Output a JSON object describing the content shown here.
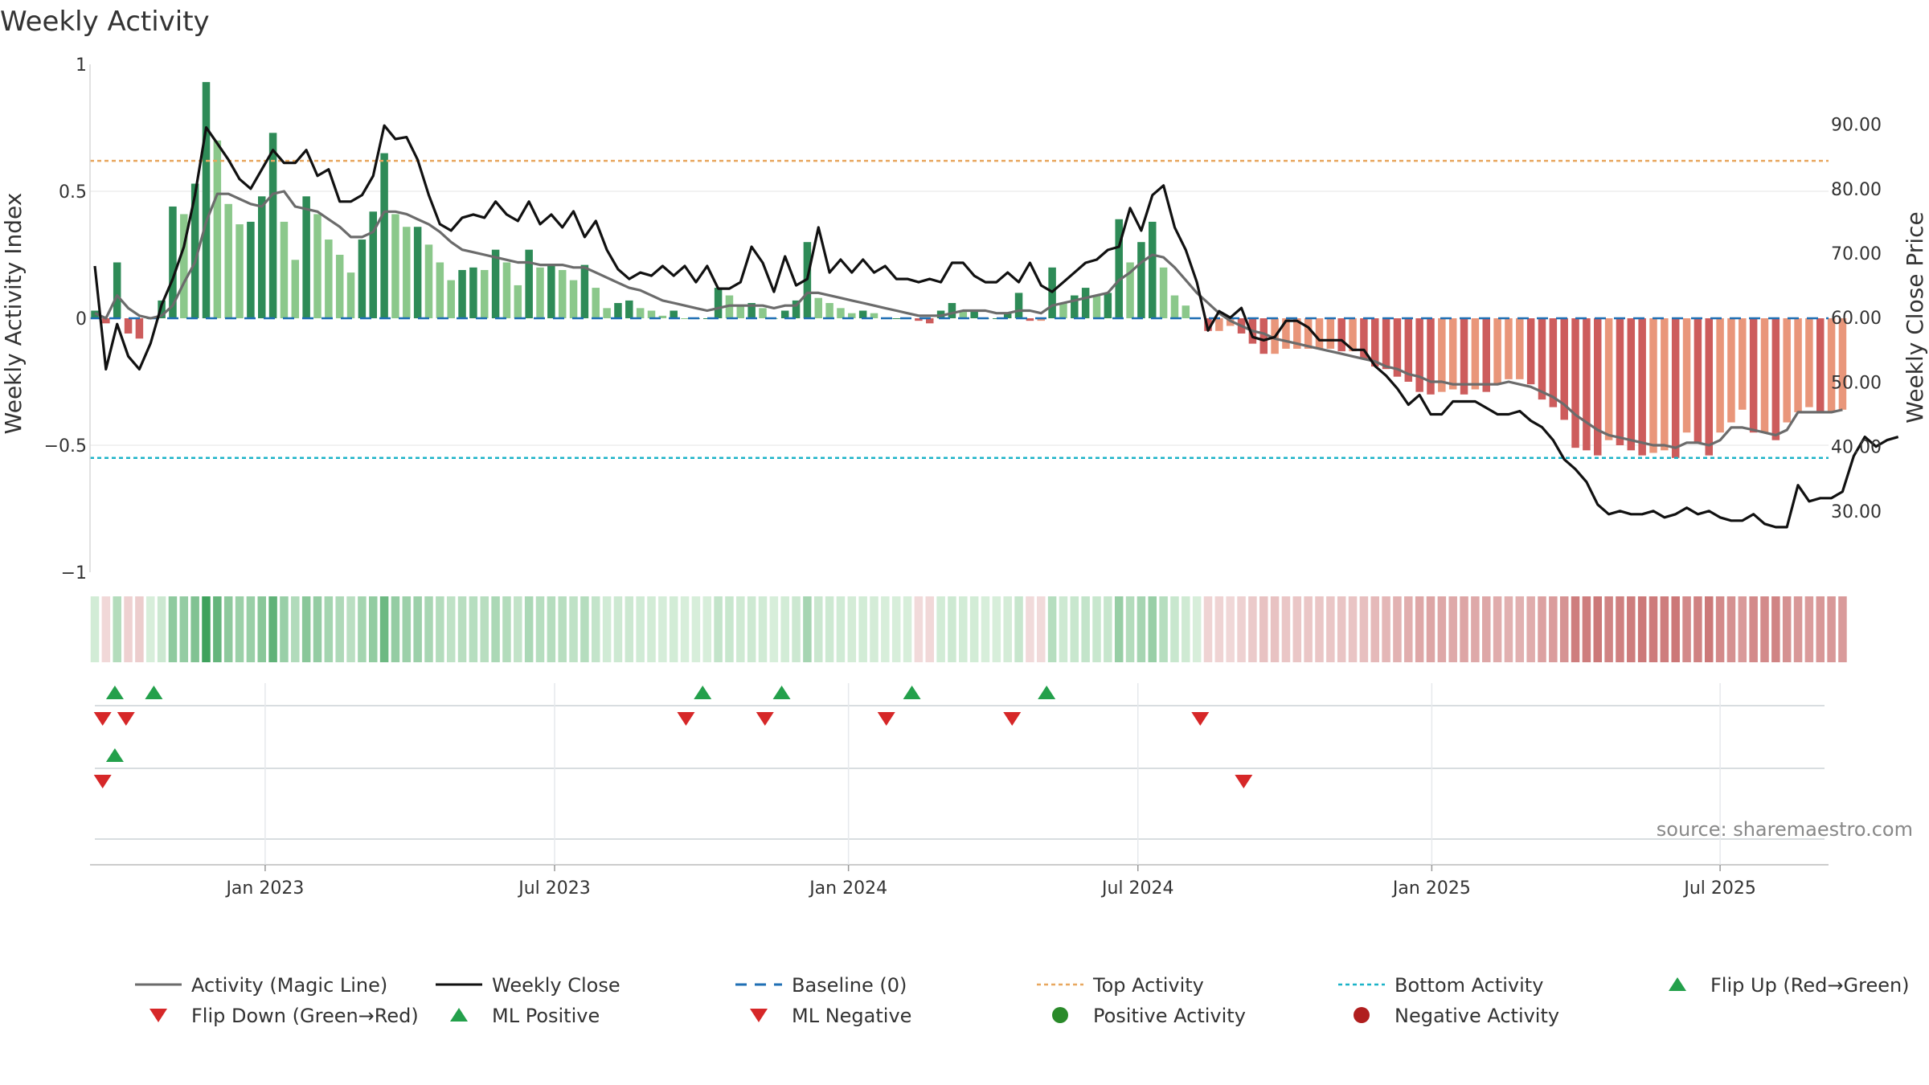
{
  "chart_data": {
    "type": "bar+line",
    "title": "Weekly Activity",
    "ylabel_left": "Weekly Activity Index",
    "ylabel_right": "Weekly Close Price",
    "left_axis": {
      "range": [
        -1,
        1
      ],
      "ticks": [
        1,
        0.5,
        0,
        -0.5,
        -1
      ],
      "tick_labels": [
        "1",
        "0.5",
        "0",
        "−0.5",
        "−1"
      ]
    },
    "right_axis": {
      "range": [
        20.5,
        99.3
      ],
      "ticks": [
        90,
        80,
        70,
        60,
        50,
        40,
        30
      ],
      "tick_labels": [
        "90.00",
        "80.00",
        "70.00",
        "60.00",
        "50.00",
        "40.00",
        "30.00"
      ]
    },
    "x_axis": {
      "start_week_index": 0,
      "end_week_index": 157,
      "date_ticks": [
        {
          "label": "Jan 2023",
          "week": 15.3
        },
        {
          "label": "Jul 2023",
          "week": 41.3
        },
        {
          "label": "Jan 2024",
          "week": 67.7
        },
        {
          "label": "Jul 2024",
          "week": 93.7
        },
        {
          "label": "Jan 2025",
          "week": 120.1
        },
        {
          "label": "Jul 2025",
          "week": 146
        }
      ]
    },
    "top_activity": 0.62,
    "bottom_activity": -0.55,
    "baseline": 0,
    "weekly_activity": [
      0.03,
      -0.02,
      0.22,
      -0.06,
      -0.08,
      0.0,
      0.07,
      0.44,
      0.41,
      0.53,
      0.93,
      0.7,
      0.45,
      0.37,
      0.38,
      0.48,
      0.73,
      0.38,
      0.23,
      0.48,
      0.41,
      0.31,
      0.25,
      0.18,
      0.31,
      0.42,
      0.65,
      0.41,
      0.36,
      0.36,
      0.29,
      0.22,
      0.15,
      0.19,
      0.2,
      0.19,
      0.27,
      0.22,
      0.13,
      0.27,
      0.2,
      0.21,
      0.19,
      0.15,
      0.21,
      0.12,
      0.04,
      0.06,
      0.07,
      0.04,
      0.03,
      0.01,
      0.03,
      0.0,
      0.0,
      0.0,
      0.12,
      0.09,
      0.05,
      0.06,
      0.04,
      0.0,
      0.03,
      0.07,
      0.3,
      0.08,
      0.06,
      0.04,
      0.02,
      0.03,
      0.02,
      0.0,
      0.0,
      0.0,
      -0.01,
      -0.02,
      0.03,
      0.06,
      0.03,
      0.03,
      0.0,
      0.0,
      0.02,
      0.1,
      -0.01,
      -0.01,
      0.2,
      0.06,
      0.09,
      0.12,
      0.09,
      0.1,
      0.39,
      0.22,
      0.3,
      0.38,
      0.2,
      0.09,
      0.05,
      0.0,
      -0.05,
      -0.05,
      -0.03,
      -0.06,
      -0.1,
      -0.14,
      -0.14,
      -0.12,
      -0.12,
      -0.12,
      -0.12,
      -0.12,
      -0.13,
      -0.13,
      -0.16,
      -0.19,
      -0.2,
      -0.23,
      -0.25,
      -0.29,
      -0.3,
      -0.29,
      -0.28,
      -0.3,
      -0.28,
      -0.29,
      -0.26,
      -0.24,
      -0.24,
      -0.26,
      -0.32,
      -0.35,
      -0.4,
      -0.51,
      -0.52,
      -0.54,
      -0.48,
      -0.5,
      -0.52,
      -0.54,
      -0.53,
      -0.52,
      -0.55,
      -0.45,
      -0.49,
      -0.54,
      -0.45,
      -0.41,
      -0.36,
      -0.45,
      -0.45,
      -0.48,
      -0.41,
      -0.37,
      -0.35,
      -0.37,
      -0.37,
      -0.36
    ],
    "magic_line": [
      0.02,
      0.0,
      0.09,
      0.04,
      0.01,
      0.0,
      0.01,
      0.05,
      0.14,
      0.22,
      0.38,
      0.49,
      0.49,
      0.47,
      0.45,
      0.44,
      0.49,
      0.5,
      0.44,
      0.43,
      0.42,
      0.39,
      0.36,
      0.32,
      0.32,
      0.34,
      0.42,
      0.42,
      0.41,
      0.39,
      0.37,
      0.34,
      0.3,
      0.27,
      0.26,
      0.25,
      0.24,
      0.23,
      0.22,
      0.22,
      0.21,
      0.21,
      0.21,
      0.2,
      0.2,
      0.18,
      0.16,
      0.14,
      0.12,
      0.11,
      0.09,
      0.07,
      0.06,
      0.05,
      0.04,
      0.03,
      0.04,
      0.05,
      0.05,
      0.05,
      0.05,
      0.04,
      0.05,
      0.05,
      0.1,
      0.1,
      0.09,
      0.08,
      0.07,
      0.06,
      0.05,
      0.04,
      0.03,
      0.02,
      0.01,
      0.01,
      0.01,
      0.02,
      0.03,
      0.03,
      0.03,
      0.02,
      0.02,
      0.03,
      0.03,
      0.02,
      0.05,
      0.06,
      0.07,
      0.08,
      0.09,
      0.1,
      0.15,
      0.18,
      0.22,
      0.25,
      0.24,
      0.2,
      0.15,
      0.1,
      0.06,
      0.02,
      -0.01,
      -0.03,
      -0.05,
      -0.06,
      -0.08,
      -0.09,
      -0.1,
      -0.11,
      -0.12,
      -0.13,
      -0.14,
      -0.15,
      -0.16,
      -0.17,
      -0.19,
      -0.2,
      -0.22,
      -0.23,
      -0.25,
      -0.25,
      -0.26,
      -0.26,
      -0.26,
      -0.26,
      -0.26,
      -0.25,
      -0.26,
      -0.27,
      -0.29,
      -0.31,
      -0.34,
      -0.38,
      -0.41,
      -0.44,
      -0.46,
      -0.47,
      -0.48,
      -0.49,
      -0.5,
      -0.5,
      -0.51,
      -0.49,
      -0.49,
      -0.5,
      -0.48,
      -0.43,
      -0.43,
      -0.44,
      -0.45,
      -0.46,
      -0.44,
      -0.37,
      -0.37,
      -0.37,
      -0.37,
      -0.36
    ],
    "weekly_close": [
      68,
      52,
      59,
      54,
      52,
      56,
      62,
      66,
      71,
      79,
      89.5,
      87,
      84.5,
      81.5,
      80,
      83,
      86,
      84,
      84,
      86,
      82,
      83,
      78,
      78,
      79,
      82,
      89.8,
      87.7,
      88,
      84.5,
      79,
      74.5,
      73.5,
      75.5,
      76,
      75.5,
      78,
      76,
      75,
      78,
      74.5,
      76,
      74,
      76.5,
      72.5,
      75,
      70.5,
      67.5,
      66,
      67,
      66.5,
      68,
      66.5,
      68,
      65.5,
      68,
      64.5,
      64.5,
      65.5,
      71,
      68.5,
      64,
      69.5,
      65,
      66,
      74,
      67,
      69,
      67,
      69,
      67,
      68,
      66,
      66,
      65.5,
      66,
      65.5,
      68.5,
      68.5,
      66.5,
      65.5,
      65.5,
      67,
      65.5,
      68.5,
      65,
      64,
      65.5,
      67,
      68.5,
      69,
      70.5,
      71,
      77,
      73.5,
      79,
      80.5,
      74,
      70.5,
      65.5,
      58,
      61,
      60,
      61.5,
      57,
      56.5,
      57,
      59.5,
      59.5,
      58.5,
      56.5,
      56.5,
      56.5,
      55,
      55,
      52.5,
      51,
      49,
      46.5,
      48,
      45,
      45,
      47,
      47,
      47,
      46,
      45,
      45,
      45.5,
      44,
      43,
      41,
      38,
      36.5,
      34.5,
      31,
      29.5,
      30,
      29.5,
      29.5,
      30,
      29,
      29.5,
      30.5,
      29.5,
      30,
      29,
      28.5,
      28.5,
      29.5,
      28,
      27.5,
      27.5,
      34,
      31.5,
      32,
      32,
      33,
      38.5,
      41.5,
      40,
      41,
      41.5
    ],
    "band_row": "heatmap strip of weekly activity",
    "flip_row_1": {
      "flip_up_weeks": [
        1.8,
        5.3,
        54.6,
        61.7,
        73.4,
        85.5
      ],
      "flip_down_weeks": [
        0.7,
        2.8,
        53.1,
        60.2,
        71.1,
        82.4,
        99.3
      ]
    },
    "flip_row_2": {
      "flip_up_weeks": [
        1.8
      ],
      "flip_down_weeks": [
        0.7,
        103.2
      ]
    },
    "colors": {
      "strong_green": "#2e8b57",
      "light_green": "#8bc88b",
      "strong_red": "#cd5c5c",
      "light_red": "#e9967a",
      "magic_line": "#6b6b6b",
      "close_line": "#111111",
      "baseline": "#1f6fb4",
      "top_activity": "#e8a75f",
      "bottom_activity": "#1bb3c8",
      "marker_green": "#23a04b",
      "marker_red": "#d62728",
      "dot_green": "#2a8a2a",
      "dot_red": "#b01e1e"
    },
    "legend": [
      {
        "label": "Activity (Magic Line)",
        "symbol": "line",
        "color": "#6b6b6b"
      },
      {
        "label": "Weekly Close",
        "symbol": "line",
        "color": "#111111"
      },
      {
        "label": "Baseline (0)",
        "symbol": "dashed",
        "color": "#1f6fb4"
      },
      {
        "label": "Top Activity",
        "symbol": "dotted",
        "color": "#e8a75f"
      },
      {
        "label": "Bottom Activity",
        "symbol": "dotted",
        "color": "#1bb3c8"
      },
      {
        "label": "Flip Up (Red→Green)",
        "symbol": "triangle-up",
        "color": "#23a04b"
      },
      {
        "label": "Flip Down (Green→Red)",
        "symbol": "triangle-down",
        "color": "#d62728"
      },
      {
        "label": "ML Positive",
        "symbol": "triangle-up",
        "color": "#23a04b"
      },
      {
        "label": "ML Negative",
        "symbol": "triangle-down",
        "color": "#d62728"
      },
      {
        "label": "Positive Activity",
        "symbol": "circle",
        "color": "#2a8a2a"
      },
      {
        "label": "Negative Activity",
        "symbol": "circle",
        "color": "#b01e1e"
      }
    ],
    "source": "source: sharemaestro.com"
  }
}
